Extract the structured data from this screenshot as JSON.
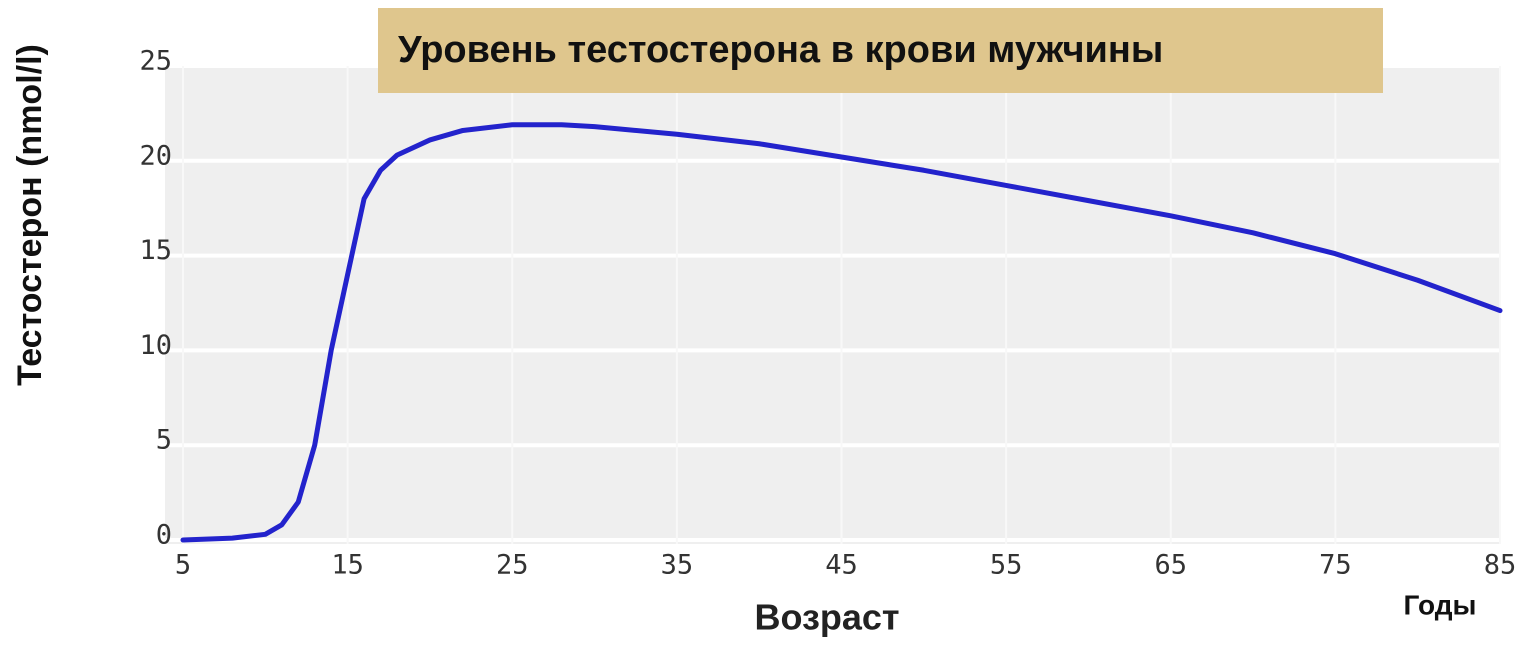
{
  "chart_data": {
    "type": "line",
    "title": "Уровень тестостерона в крови мужчины",
    "y_label": "Тестостерон (nmol/l)",
    "x_label": "Возраст",
    "x_unit": "Годы",
    "x": [
      5,
      8,
      10,
      11,
      12,
      13,
      14,
      15,
      16,
      17,
      18,
      20,
      22,
      25,
      28,
      30,
      35,
      40,
      45,
      50,
      55,
      60,
      65,
      70,
      75,
      80,
      85
    ],
    "series": [
      {
        "name": "Тестостерон",
        "color": "#2323cc",
        "values": [
          0,
          0.1,
          0.3,
          0.8,
          2,
          5,
          10,
          14,
          18,
          19.5,
          20.3,
          21.1,
          21.6,
          21.9,
          21.9,
          21.8,
          21.4,
          20.9,
          20.2,
          19.5,
          18.7,
          17.9,
          17.1,
          16.2,
          15.1,
          13.7,
          12.1
        ]
      }
    ],
    "xlim": [
      5,
      85
    ],
    "xticks": [
      5,
      15,
      25,
      35,
      45,
      55,
      65,
      75,
      85
    ],
    "ylim": [
      0,
      25
    ],
    "yticks": [
      0,
      5,
      10,
      15,
      20,
      25
    ],
    "grid": true
  }
}
